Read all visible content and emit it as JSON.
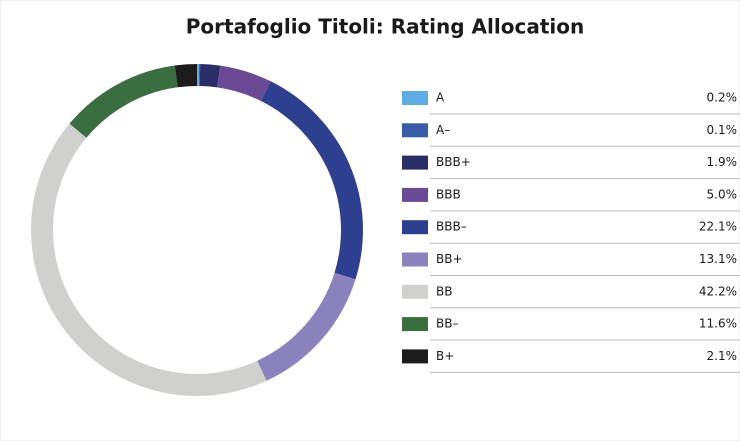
{
  "chart_data": {
    "type": "donut",
    "title": "Portafoglio Titoli: Rating Allocation",
    "categories": [
      "A",
      "A–",
      "BBB+",
      "BBB",
      "BBB–",
      "BB+",
      "BB",
      "BB–",
      "B+"
    ],
    "values": [
      0.2,
      0.1,
      1.9,
      5.0,
      22.1,
      13.1,
      42.2,
      11.6,
      2.1
    ],
    "value_labels": [
      "0.2%",
      "0.1%",
      "1.9%",
      "5.0%",
      "22.1%",
      "13.1%",
      "42.2%",
      "11.6%",
      "2.1%"
    ],
    "colors": [
      "#5dade2",
      "#3a5ba8",
      "#2a2d66",
      "#6a4a94",
      "#2f3f8f",
      "#8a82bd",
      "#d0d0ce",
      "#3a6e40",
      "#1c1c1c"
    ]
  }
}
